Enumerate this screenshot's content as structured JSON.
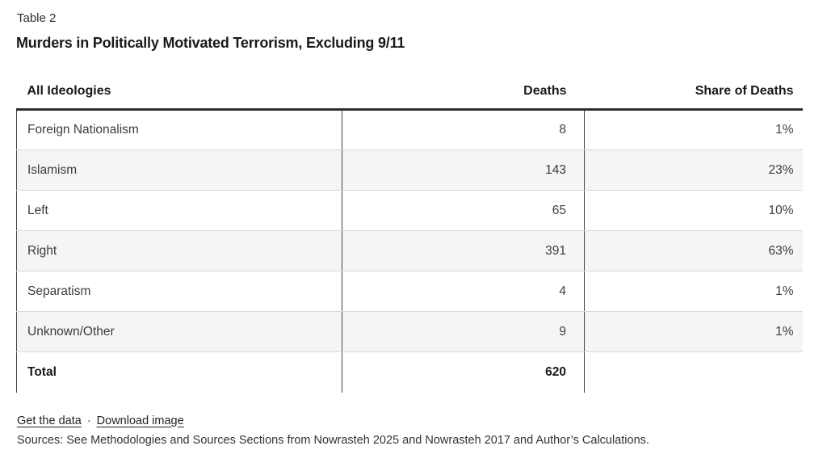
{
  "header": {
    "label": "Table 2",
    "title": "Murders in Politically Motivated Terrorism, Excluding 9/11"
  },
  "table": {
    "columns": [
      "All Ideologies",
      "Deaths",
      "Share of Deaths"
    ],
    "rows": [
      {
        "ideology": "Foreign Nationalism",
        "deaths": "8",
        "share": "1%"
      },
      {
        "ideology": "Islamism",
        "deaths": "143",
        "share": "23%"
      },
      {
        "ideology": "Left",
        "deaths": "65",
        "share": "10%"
      },
      {
        "ideology": "Right",
        "deaths": "391",
        "share": "63%"
      },
      {
        "ideology": "Separatism",
        "deaths": "4",
        "share": "1%"
      },
      {
        "ideology": "Unknown/Other",
        "deaths": "9",
        "share": "1%"
      }
    ],
    "total": {
      "ideology": "Total",
      "deaths": "620",
      "share": ""
    }
  },
  "footer": {
    "links": [
      {
        "label": "Get the data"
      },
      {
        "label": "Download image"
      }
    ],
    "separator": "·",
    "sources": "Sources: See Methodologies and Sources Sections from Nowrasteh 2025 and Nowrasteh 2017 and Author’s Calculations."
  },
  "colors": {
    "row_stripe": "#f5f5f5",
    "header_rule": "#2e2e2e",
    "column_divider": "#444444",
    "row_separator": "#d8d8d8",
    "text": "#3c3c3c"
  },
  "chart_data": {
    "type": "table",
    "title": "Murders in Politically Motivated Terrorism, Excluding 9/11",
    "table_label": "Table 2",
    "columns": [
      "All Ideologies",
      "Deaths",
      "Share of Deaths"
    ],
    "rows": [
      [
        "Foreign Nationalism",
        8,
        "1%"
      ],
      [
        "Islamism",
        143,
        "23%"
      ],
      [
        "Left",
        65,
        "10%"
      ],
      [
        "Right",
        391,
        "63%"
      ],
      [
        "Separatism",
        4,
        "1%"
      ],
      [
        "Unknown/Other",
        9,
        "1%"
      ],
      [
        "Total",
        620,
        ""
      ]
    ]
  }
}
